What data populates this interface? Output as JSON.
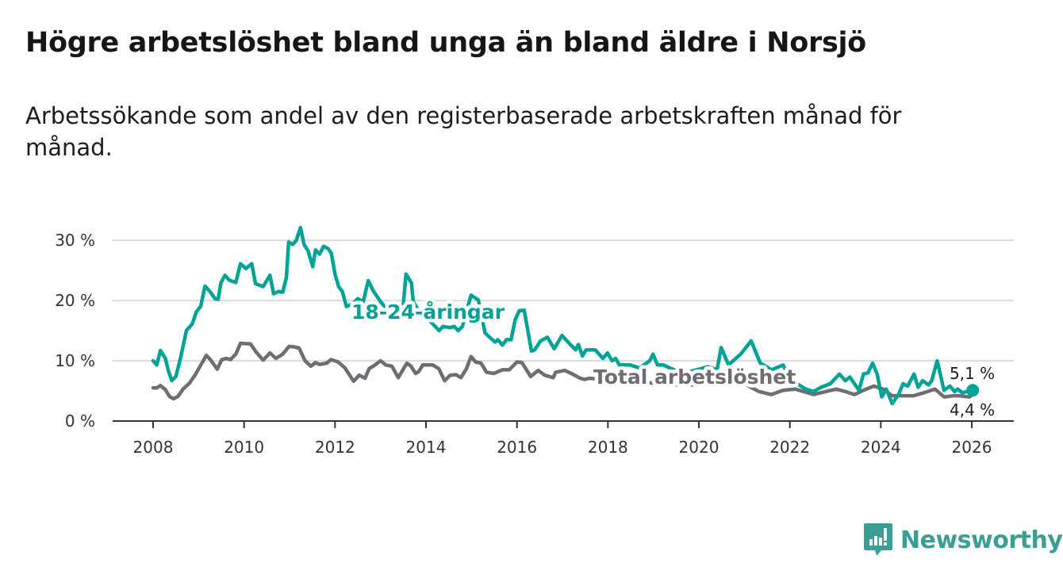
{
  "header": {
    "title": "Högre arbetslöshet bland unga än bland äldre i Norsjö",
    "subtitle": "Arbetssökande som andel av den registerbaserade arbetskraften månad för månad."
  },
  "branding": {
    "logo_text": "Newsworthy",
    "icon": "bar-chart-speech-bubble-icon"
  },
  "colors": {
    "youth": "#00a396",
    "total": "#6f6d73",
    "grid": "#dcdcdc",
    "axis": "#333333",
    "brand": "#3a9e94"
  },
  "chart_data": {
    "type": "line",
    "title": "Högre arbetslöshet bland unga än bland äldre i Norsjö",
    "xlabel": "",
    "ylabel": "",
    "xlim": [
      2008,
      2026
    ],
    "ylim": [
      0,
      30
    ],
    "grid": true,
    "x_ticks": [
      2008,
      2010,
      2012,
      2014,
      2016,
      2018,
      2020,
      2022,
      2024,
      2026
    ],
    "x_tick_labels": [
      "2008",
      "2010",
      "2012",
      "2014",
      "2016",
      "2018",
      "2020",
      "2022",
      "2024",
      "2026"
    ],
    "y_ticks": [
      0,
      10,
      20,
      30
    ],
    "y_tick_labels": [
      "0 %",
      "10 %",
      "20 %",
      "30 %"
    ],
    "series": [
      {
        "name": "18-24-åringar",
        "label": "18-24-åringar",
        "end_label": "5,1 %",
        "end_value": 5.1,
        "points": [
          [
            2008.0,
            10.0
          ],
          [
            2008.08,
            9.3
          ],
          [
            2008.16,
            11.7
          ],
          [
            2008.27,
            10.4
          ],
          [
            2008.33,
            8.5
          ],
          [
            2008.41,
            6.7
          ],
          [
            2008.5,
            7.4
          ],
          [
            2008.61,
            10.7
          ],
          [
            2008.73,
            15.0
          ],
          [
            2008.86,
            16.1
          ],
          [
            2008.95,
            18.1
          ],
          [
            2009.05,
            19.1
          ],
          [
            2009.14,
            22.4
          ],
          [
            2009.26,
            21.4
          ],
          [
            2009.36,
            20.3
          ],
          [
            2009.43,
            20.2
          ],
          [
            2009.49,
            22.9
          ],
          [
            2009.58,
            24.2
          ],
          [
            2009.67,
            23.4
          ],
          [
            2009.82,
            23.0
          ],
          [
            2009.92,
            26.1
          ],
          [
            2010.04,
            25.3
          ],
          [
            2010.17,
            26.1
          ],
          [
            2010.25,
            22.8
          ],
          [
            2010.42,
            22.3
          ],
          [
            2010.57,
            24.2
          ],
          [
            2010.65,
            21.1
          ],
          [
            2010.76,
            21.5
          ],
          [
            2010.85,
            21.4
          ],
          [
            2010.93,
            23.8
          ],
          [
            2010.98,
            29.7
          ],
          [
            2011.07,
            29.3
          ],
          [
            2011.15,
            30.0
          ],
          [
            2011.24,
            32.1
          ],
          [
            2011.32,
            29.3
          ],
          [
            2011.41,
            28.2
          ],
          [
            2011.51,
            25.6
          ],
          [
            2011.57,
            28.4
          ],
          [
            2011.66,
            27.7
          ],
          [
            2011.75,
            29.0
          ],
          [
            2011.85,
            28.6
          ],
          [
            2011.92,
            27.8
          ],
          [
            2012.0,
            24.4
          ],
          [
            2012.08,
            22.3
          ],
          [
            2012.16,
            21.5
          ],
          [
            2012.25,
            19.0
          ],
          [
            2012.4,
            19.5
          ],
          [
            2012.5,
            20.3
          ],
          [
            2012.62,
            19.8
          ],
          [
            2012.73,
            23.3
          ],
          [
            2012.84,
            21.6
          ],
          [
            2013.0,
            19.8
          ],
          [
            2013.15,
            18.5
          ],
          [
            2013.3,
            18.0
          ],
          [
            2013.48,
            17.5
          ],
          [
            2013.56,
            24.4
          ],
          [
            2013.68,
            22.9
          ],
          [
            2013.72,
            19.8
          ],
          [
            2013.9,
            17.5
          ],
          [
            2014.1,
            16.5
          ],
          [
            2014.29,
            15.0
          ],
          [
            2014.37,
            15.7
          ],
          [
            2014.53,
            15.5
          ],
          [
            2014.62,
            15.7
          ],
          [
            2014.71,
            15.0
          ],
          [
            2014.8,
            15.7
          ],
          [
            2014.99,
            20.9
          ],
          [
            2015.15,
            20.1
          ],
          [
            2015.3,
            14.6
          ],
          [
            2015.43,
            13.7
          ],
          [
            2015.52,
            13.1
          ],
          [
            2015.58,
            13.5
          ],
          [
            2015.68,
            12.6
          ],
          [
            2015.77,
            13.5
          ],
          [
            2015.87,
            13.5
          ],
          [
            2015.96,
            16.8
          ],
          [
            2016.05,
            18.3
          ],
          [
            2016.16,
            18.4
          ],
          [
            2016.32,
            11.6
          ],
          [
            2016.39,
            11.8
          ],
          [
            2016.52,
            13.3
          ],
          [
            2016.67,
            13.9
          ],
          [
            2016.82,
            12.0
          ],
          [
            2016.99,
            14.2
          ],
          [
            2017.15,
            12.9
          ],
          [
            2017.29,
            11.8
          ],
          [
            2017.35,
            12.7
          ],
          [
            2017.44,
            10.8
          ],
          [
            2017.52,
            11.8
          ],
          [
            2017.72,
            11.8
          ],
          [
            2017.89,
            10.4
          ],
          [
            2017.99,
            11.3
          ],
          [
            2018.09,
            10.0
          ],
          [
            2018.17,
            10.4
          ],
          [
            2018.25,
            9.3
          ],
          [
            2018.49,
            9.3
          ],
          [
            2018.7,
            8.8
          ],
          [
            2018.92,
            10.0
          ],
          [
            2018.99,
            11.1
          ],
          [
            2019.09,
            9.3
          ],
          [
            2019.22,
            9.3
          ],
          [
            2019.45,
            8.5
          ],
          [
            2019.7,
            8.0
          ],
          [
            2019.95,
            8.5
          ],
          [
            2020.2,
            9.0
          ],
          [
            2020.4,
            8.5
          ],
          [
            2020.49,
            12.2
          ],
          [
            2020.65,
            9.3
          ],
          [
            2020.92,
            11.1
          ],
          [
            2021.15,
            13.3
          ],
          [
            2021.35,
            9.6
          ],
          [
            2021.6,
            8.5
          ],
          [
            2021.85,
            9.3
          ],
          [
            2022.0,
            7.0
          ],
          [
            2022.2,
            6.0
          ],
          [
            2022.35,
            5.3
          ],
          [
            2022.52,
            4.9
          ],
          [
            2022.69,
            5.6
          ],
          [
            2022.89,
            6.2
          ],
          [
            2023.09,
            7.8
          ],
          [
            2023.22,
            6.7
          ],
          [
            2023.32,
            7.3
          ],
          [
            2023.52,
            5.1
          ],
          [
            2023.62,
            7.8
          ],
          [
            2023.72,
            8.0
          ],
          [
            2023.82,
            9.6
          ],
          [
            2023.92,
            7.8
          ],
          [
            2024.02,
            4.0
          ],
          [
            2024.12,
            5.3
          ],
          [
            2024.25,
            2.9
          ],
          [
            2024.39,
            4.4
          ],
          [
            2024.49,
            6.2
          ],
          [
            2024.59,
            5.8
          ],
          [
            2024.73,
            7.8
          ],
          [
            2024.82,
            5.6
          ],
          [
            2024.92,
            6.7
          ],
          [
            2025.05,
            6.0
          ],
          [
            2025.12,
            6.7
          ],
          [
            2025.24,
            10.0
          ],
          [
            2025.39,
            5.1
          ],
          [
            2025.52,
            5.8
          ],
          [
            2025.62,
            4.9
          ],
          [
            2025.69,
            5.3
          ],
          [
            2025.79,
            4.7
          ],
          [
            2026.02,
            5.1
          ]
        ]
      },
      {
        "name": "Total arbetslöshet",
        "label": "Total arbetslöshet",
        "end_label": "4,4 %",
        "end_value": 4.4,
        "points": [
          [
            2008.0,
            5.5
          ],
          [
            2008.08,
            5.5
          ],
          [
            2008.16,
            5.9
          ],
          [
            2008.27,
            5.2
          ],
          [
            2008.36,
            4.1
          ],
          [
            2008.45,
            3.7
          ],
          [
            2008.55,
            4.1
          ],
          [
            2008.66,
            5.3
          ],
          [
            2008.8,
            6.3
          ],
          [
            2008.92,
            7.6
          ],
          [
            2009.05,
            9.3
          ],
          [
            2009.17,
            10.9
          ],
          [
            2009.26,
            10.2
          ],
          [
            2009.41,
            8.6
          ],
          [
            2009.51,
            10.2
          ],
          [
            2009.61,
            10.4
          ],
          [
            2009.7,
            10.2
          ],
          [
            2009.82,
            11.1
          ],
          [
            2009.92,
            12.9
          ],
          [
            2010.14,
            12.8
          ],
          [
            2010.26,
            11.5
          ],
          [
            2010.42,
            10.1
          ],
          [
            2010.57,
            11.3
          ],
          [
            2010.7,
            10.4
          ],
          [
            2010.85,
            11.1
          ],
          [
            2010.99,
            12.4
          ],
          [
            2011.1,
            12.3
          ],
          [
            2011.21,
            12.1
          ],
          [
            2011.34,
            10.0
          ],
          [
            2011.47,
            9.1
          ],
          [
            2011.57,
            9.7
          ],
          [
            2011.66,
            9.4
          ],
          [
            2011.82,
            9.6
          ],
          [
            2011.91,
            10.2
          ],
          [
            2012.07,
            9.8
          ],
          [
            2012.22,
            8.8
          ],
          [
            2012.41,
            6.6
          ],
          [
            2012.53,
            7.6
          ],
          [
            2012.66,
            7.1
          ],
          [
            2012.75,
            8.7
          ],
          [
            2012.88,
            9.3
          ],
          [
            2013.0,
            10.0
          ],
          [
            2013.12,
            9.3
          ],
          [
            2013.25,
            9.1
          ],
          [
            2013.39,
            7.2
          ],
          [
            2013.58,
            9.6
          ],
          [
            2013.67,
            9.1
          ],
          [
            2013.77,
            7.9
          ],
          [
            2013.84,
            8.2
          ],
          [
            2013.93,
            9.3
          ],
          [
            2014.15,
            9.3
          ],
          [
            2014.28,
            8.7
          ],
          [
            2014.41,
            6.7
          ],
          [
            2014.53,
            7.6
          ],
          [
            2014.66,
            7.7
          ],
          [
            2014.77,
            7.2
          ],
          [
            2014.89,
            8.7
          ],
          [
            2014.99,
            10.7
          ],
          [
            2015.09,
            9.8
          ],
          [
            2015.21,
            9.6
          ],
          [
            2015.33,
            8.1
          ],
          [
            2015.49,
            7.9
          ],
          [
            2015.68,
            8.5
          ],
          [
            2015.83,
            8.5
          ],
          [
            2016.0,
            9.8
          ],
          [
            2016.11,
            9.7
          ],
          [
            2016.3,
            7.4
          ],
          [
            2016.47,
            8.4
          ],
          [
            2016.61,
            7.6
          ],
          [
            2016.8,
            7.2
          ],
          [
            2016.85,
            8.1
          ],
          [
            2017.05,
            8.4
          ],
          [
            2017.22,
            7.8
          ],
          [
            2017.39,
            7.1
          ],
          [
            2017.49,
            6.9
          ],
          [
            2017.59,
            7.1
          ],
          [
            2018.0,
            6.8
          ],
          [
            2018.5,
            6.5
          ],
          [
            2019.0,
            6.3
          ],
          [
            2019.5,
            6.0
          ],
          [
            2020.0,
            6.0
          ],
          [
            2020.5,
            6.8
          ],
          [
            2021.0,
            6.2
          ],
          [
            2021.32,
            4.9
          ],
          [
            2021.59,
            4.4
          ],
          [
            2021.85,
            5.1
          ],
          [
            2022.12,
            5.3
          ],
          [
            2022.52,
            4.4
          ],
          [
            2022.79,
            4.9
          ],
          [
            2023.02,
            5.3
          ],
          [
            2023.22,
            4.9
          ],
          [
            2023.42,
            4.4
          ],
          [
            2023.62,
            5.1
          ],
          [
            2023.85,
            5.8
          ],
          [
            2024.05,
            5.3
          ],
          [
            2024.25,
            4.2
          ],
          [
            2024.45,
            4.2
          ],
          [
            2024.72,
            4.2
          ],
          [
            2024.95,
            4.7
          ],
          [
            2025.19,
            5.3
          ],
          [
            2025.39,
            4.0
          ],
          [
            2025.59,
            4.2
          ],
          [
            2025.72,
            4.2
          ],
          [
            2025.95,
            4.0
          ],
          [
            2026.02,
            4.4
          ]
        ]
      }
    ]
  }
}
